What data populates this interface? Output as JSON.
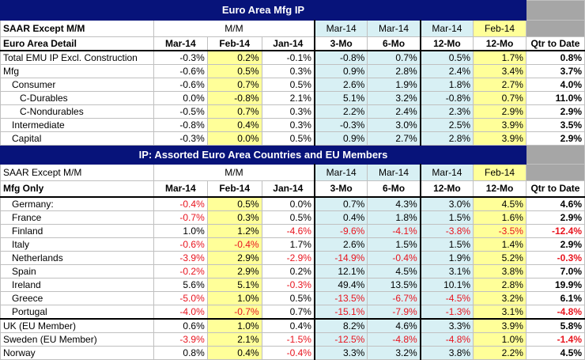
{
  "section1": {
    "title": "Euro Area Mfg IP",
    "hdr1": {
      "label": "SAAR Except M/M",
      "mm": "M/M",
      "c1": "Mar-14",
      "c2": "Mar-14",
      "c3": "Mar-14",
      "c4": "Feb-14"
    },
    "hdr2": {
      "label": "Euro Area Detail",
      "h": [
        "Mar-14",
        "Feb-14",
        "Jan-14",
        "3-Mo",
        "6-Mo",
        "12-Mo",
        "12-Mo",
        "Qtr to Date"
      ]
    },
    "rows": [
      {
        "label": "Total EMU IP Excl. Construction",
        "v": [
          "-0.3%",
          "0.2%",
          "-0.1%",
          "-0.8%",
          "0.7%",
          "0.5%",
          "1.7%",
          "0.8%"
        ]
      },
      {
        "label": "Mfg",
        "v": [
          "-0.6%",
          "0.5%",
          "0.3%",
          "0.9%",
          "2.8%",
          "2.4%",
          "3.4%",
          "3.7%"
        ]
      },
      {
        "label": "Consumer",
        "v": [
          "-0.6%",
          "0.7%",
          "0.5%",
          "2.6%",
          "1.9%",
          "1.8%",
          "2.7%",
          "4.0%"
        ]
      },
      {
        "label": "C-Durables",
        "v": [
          "0.0%",
          "-0.8%",
          "2.1%",
          "5.1%",
          "3.2%",
          "-0.8%",
          "0.7%",
          "11.0%"
        ]
      },
      {
        "label": "C-Nondurables",
        "v": [
          "-0.5%",
          "0.7%",
          "0.3%",
          "2.2%",
          "2.4%",
          "2.3%",
          "2.9%",
          "2.9%"
        ]
      },
      {
        "label": "Intermediate",
        "v": [
          "-0.8%",
          "0.4%",
          "0.3%",
          "-0.3%",
          "3.0%",
          "2.5%",
          "3.9%",
          "3.5%"
        ]
      },
      {
        "label": "Capital",
        "v": [
          "-0.3%",
          "0.0%",
          "0.5%",
          "0.9%",
          "2.7%",
          "2.8%",
          "3.9%",
          "2.9%"
        ]
      }
    ]
  },
  "section2": {
    "title": "IP: Assorted Euro Area Countries and EU Members",
    "hdr1": {
      "label": "SAAR Except M/M",
      "mm": "M/M",
      "c1": "Mar-14",
      "c2": "Mar-14",
      "c3": "Mar-14",
      "c4": "Feb-14"
    },
    "hdr2": {
      "label": "Mfg Only",
      "h": [
        "Mar-14",
        "Feb-14",
        "Jan-14",
        "3-Mo",
        "6-Mo",
        "12-Mo",
        "12-Mo",
        "Qtr to Date"
      ]
    },
    "rows": [
      {
        "label": "Germany:",
        "v": [
          "-0.4%",
          "0.5%",
          "0.0%",
          "0.7%",
          "4.3%",
          "3.0%",
          "4.5%",
          "4.6%"
        ]
      },
      {
        "label": "France",
        "v": [
          "-0.7%",
          "0.3%",
          "0.5%",
          "0.4%",
          "1.8%",
          "1.5%",
          "1.6%",
          "2.9%"
        ]
      },
      {
        "label": "Finland",
        "v": [
          "1.0%",
          "1.2%",
          "-4.6%",
          "-9.6%",
          "-4.1%",
          "-3.8%",
          "-3.5%",
          "-12.4%"
        ]
      },
      {
        "label": "Italy",
        "v": [
          "-0.6%",
          "-0.4%",
          "1.7%",
          "2.6%",
          "1.5%",
          "1.5%",
          "1.4%",
          "2.9%"
        ]
      },
      {
        "label": "Netherlands",
        "v": [
          "-3.9%",
          "2.9%",
          "-2.9%",
          "-14.9%",
          "-0.4%",
          "1.9%",
          "5.2%",
          "-0.3%"
        ]
      },
      {
        "label": "Spain",
        "v": [
          "-0.2%",
          "2.9%",
          "0.2%",
          "12.1%",
          "4.5%",
          "3.1%",
          "3.8%",
          "7.0%"
        ]
      },
      {
        "label": "Ireland",
        "v": [
          "5.6%",
          "5.1%",
          "-0.3%",
          "49.4%",
          "13.5%",
          "10.1%",
          "2.8%",
          "19.9%"
        ]
      },
      {
        "label": "Greece",
        "v": [
          "-5.0%",
          "1.0%",
          "0.5%",
          "-13.5%",
          "-6.7%",
          "-4.5%",
          "3.2%",
          "6.1%"
        ]
      },
      {
        "label": "Portugal",
        "v": [
          "-4.0%",
          "-0.7%",
          "0.7%",
          "-15.1%",
          "-7.9%",
          "-1.3%",
          "3.1%",
          "-4.8%"
        ]
      },
      {
        "label": "UK (EU Member)",
        "v": [
          "0.6%",
          "1.0%",
          "0.4%",
          "8.2%",
          "4.6%",
          "3.3%",
          "3.9%",
          "5.8%"
        ]
      },
      {
        "label": "Sweden (EU Member)",
        "v": [
          "-3.9%",
          "2.1%",
          "-1.5%",
          "-12.5%",
          "-4.8%",
          "-4.8%",
          "1.0%",
          "-1.4%"
        ]
      },
      {
        "label": "Norway",
        "v": [
          "0.8%",
          "0.4%",
          "-0.4%",
          "3.3%",
          "3.2%",
          "3.8%",
          "2.2%",
          "4.5%"
        ]
      }
    ]
  },
  "colors": {
    "header_bar": "#07137a",
    "cyan_col": "#d8f0f4",
    "yellow_col": "#ffff99",
    "gray_col": "#a6a6a6",
    "negative": "#e8141e"
  }
}
